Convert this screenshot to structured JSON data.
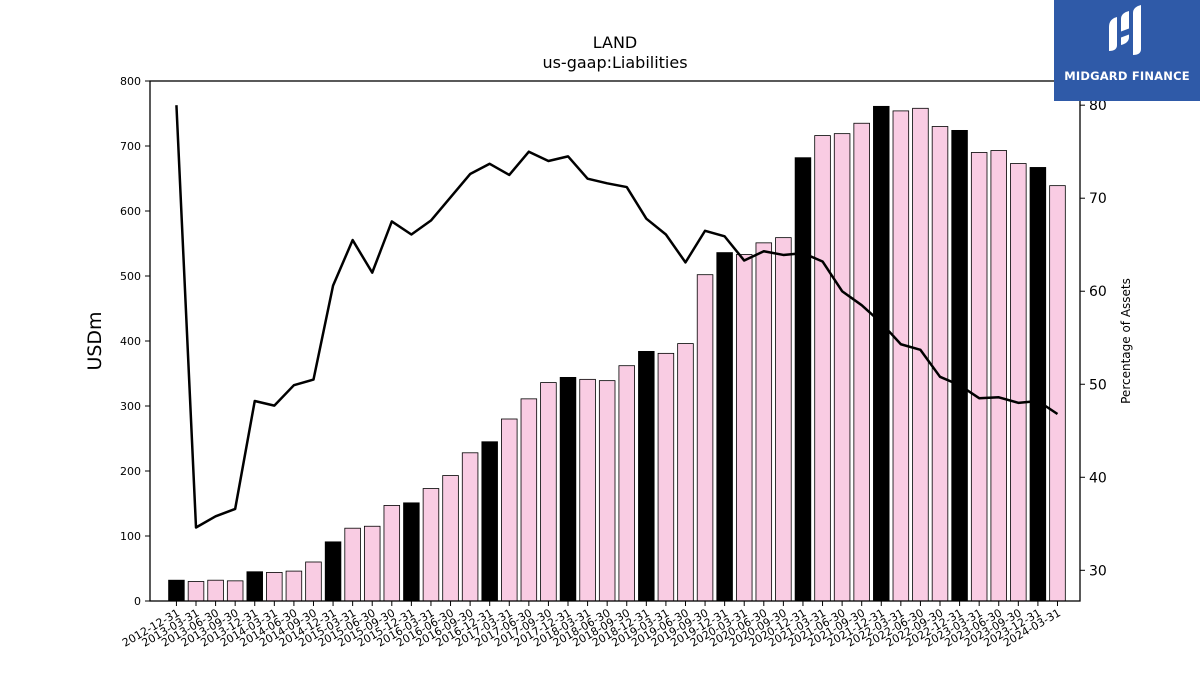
{
  "brand": {
    "name": "MIDGARD FINANCE",
    "logo_bg": "#2f5aa8",
    "logo_icon": "midgard-logo-icon"
  },
  "chart_data": {
    "type": "bar",
    "title": "LAND",
    "subtitle": "us-gaap:Liabilities",
    "ylabel": "USDm",
    "y2label": "Percentage of Assets",
    "ylim": [
      0,
      800
    ],
    "y2lim": [
      26.7,
      82.6
    ],
    "yticks": [
      0,
      100,
      200,
      300,
      400,
      500,
      600,
      700,
      800
    ],
    "y2ticks": [
      30,
      40,
      50,
      60,
      70,
      80
    ],
    "grid": false,
    "colors": {
      "bar_default": "#f9cce3",
      "bar_highlight": "#000000",
      "line": "#000000"
    },
    "categories": [
      "2012-12-31",
      "2013-03-31",
      "2013-06-30",
      "2013-09-30",
      "2013-12-31",
      "2014-03-31",
      "2014-06-30",
      "2014-09-30",
      "2014-12-31",
      "2015-03-31",
      "2015-06-30",
      "2015-09-30",
      "2015-12-31",
      "2016-03-31",
      "2016-06-30",
      "2016-09-30",
      "2016-12-31",
      "2017-03-31",
      "2017-06-30",
      "2017-09-30",
      "2017-12-31",
      "2018-03-31",
      "2018-06-30",
      "2018-09-30",
      "2018-12-31",
      "2019-03-31",
      "2019-06-30",
      "2019-09-30",
      "2019-12-31",
      "2020-03-31",
      "2020-06-30",
      "2020-09-30",
      "2020-12-31",
      "2021-03-31",
      "2021-06-30",
      "2021-09-30",
      "2021-12-31",
      "2022-03-31",
      "2022-06-30",
      "2022-09-30",
      "2022-12-31",
      "2023-03-31",
      "2023-06-30",
      "2023-09-30",
      "2023-12-31",
      "2024-03-31"
    ],
    "series": [
      {
        "type": "bar",
        "values": [
          32,
          30,
          32,
          31,
          45,
          44,
          46,
          60,
          91,
          112,
          115,
          147,
          151,
          173,
          193,
          228,
          245,
          280,
          311,
          336,
          344,
          341,
          339,
          362,
          384,
          381,
          396,
          502,
          536,
          533,
          551,
          559,
          682,
          716,
          719,
          735,
          761,
          754,
          758,
          730,
          724,
          690,
          693,
          673,
          667,
          639
        ],
        "highlight": [
          true,
          false,
          false,
          false,
          true,
          false,
          false,
          false,
          true,
          false,
          false,
          false,
          true,
          false,
          false,
          false,
          true,
          false,
          false,
          false,
          true,
          false,
          false,
          false,
          true,
          false,
          false,
          false,
          true,
          false,
          false,
          false,
          true,
          false,
          false,
          false,
          true,
          false,
          false,
          false,
          true,
          false,
          false,
          false,
          true,
          false
        ]
      },
      {
        "type": "line",
        "axis": "right",
        "values": [
          80.0,
          34.6,
          35.8,
          36.6,
          48.2,
          47.7,
          49.9,
          50.5,
          60.6,
          65.5,
          62.0,
          67.5,
          66.1,
          67.6,
          70.1,
          72.6,
          73.7,
          72.5,
          75.0,
          74.0,
          74.5,
          72.1,
          71.6,
          71.2,
          67.8,
          66.1,
          63.1,
          66.5,
          65.9,
          63.3,
          64.3,
          63.9,
          64.1,
          63.2,
          60.0,
          58.5,
          56.6,
          54.3,
          53.7,
          50.8,
          49.9,
          48.5,
          48.6,
          48.0,
          48.2,
          46.8
        ]
      }
    ]
  }
}
